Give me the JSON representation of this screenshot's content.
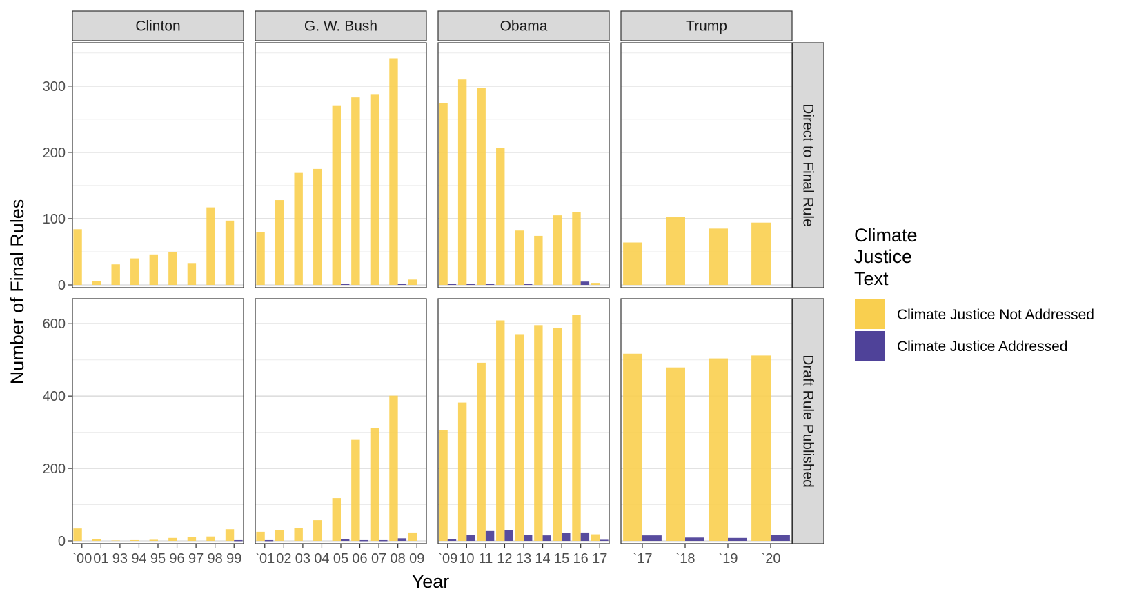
{
  "chart_data": {
    "type": "bar",
    "xlabel": "Year",
    "ylabel": "Number of Final Rules",
    "legend": {
      "title_lines": [
        "Climate",
        "Justice",
        "Text"
      ],
      "position": "right",
      "entries": [
        {
          "name": "Climate Justice Not Addressed",
          "color": "#F9CF4F"
        },
        {
          "name": "Climate Justice Addressed",
          "color": "#4F4299"
        }
      ]
    },
    "grid": true,
    "colors": {
      "not_addressed": "#F9CF4F",
      "addressed": "#4F4299",
      "strip": "#D9D9D9"
    },
    "columns": [
      "Clinton",
      "G. W. Bush",
      "Obama",
      "Trump"
    ],
    "rows": [
      "Direct to Final Rule",
      "Draft Rule Published"
    ],
    "row_ylim": [
      [
        0,
        355
      ],
      [
        0,
        650
      ]
    ],
    "row_yticks": [
      [
        0,
        100,
        200,
        300
      ],
      [
        0,
        200,
        400,
        600
      ]
    ],
    "x_labels": [
      [
        "`00",
        "01",
        "93",
        "94",
        "95",
        "96",
        "97",
        "98",
        "99"
      ],
      [
        "`01",
        "02",
        "03",
        "04",
        "05",
        "06",
        "07",
        "08",
        "09"
      ],
      [
        "`09",
        "10",
        "11",
        "12",
        "13",
        "14",
        "15",
        "16",
        "17"
      ],
      [
        "`17",
        "`18",
        "`19",
        "`20"
      ]
    ],
    "panels": [
      {
        "row": 0,
        "col": 0,
        "not_addressed": [
          84,
          6,
          31,
          40,
          46,
          50,
          33,
          117,
          97
        ],
        "addressed": [
          0,
          0,
          0,
          0,
          0,
          0,
          0,
          0,
          0
        ]
      },
      {
        "row": 0,
        "col": 1,
        "not_addressed": [
          80,
          128,
          169,
          175,
          271,
          283,
          288,
          342,
          8
        ],
        "addressed": [
          0,
          0,
          0,
          0,
          2,
          0,
          0,
          2,
          0
        ]
      },
      {
        "row": 0,
        "col": 2,
        "not_addressed": [
          274,
          310,
          297,
          207,
          82,
          74,
          105,
          110,
          3
        ],
        "addressed": [
          2,
          2,
          2,
          0,
          2,
          0,
          0,
          5,
          0
        ]
      },
      {
        "row": 0,
        "col": 3,
        "not_addressed": [
          64,
          103,
          85,
          94
        ],
        "addressed": [
          0,
          0,
          0,
          0
        ]
      },
      {
        "row": 1,
        "col": 0,
        "not_addressed": [
          34,
          4,
          1,
          2,
          3,
          8,
          10,
          12,
          32
        ],
        "addressed": [
          0,
          0,
          0,
          0,
          0,
          0,
          0,
          0,
          2
        ]
      },
      {
        "row": 1,
        "col": 1,
        "not_addressed": [
          25,
          30,
          35,
          57,
          118,
          279,
          312,
          401,
          23
        ],
        "addressed": [
          2,
          0,
          0,
          0,
          4,
          2,
          2,
          7,
          0
        ]
      },
      {
        "row": 1,
        "col": 2,
        "not_addressed": [
          306,
          382,
          492,
          609,
          571,
          596,
          589,
          625,
          18
        ],
        "addressed": [
          5,
          17,
          27,
          29,
          17,
          15,
          21,
          23,
          3
        ]
      },
      {
        "row": 1,
        "col": 3,
        "not_addressed": [
          517,
          479,
          504,
          512
        ],
        "addressed": [
          15,
          9,
          8,
          16
        ]
      }
    ]
  }
}
